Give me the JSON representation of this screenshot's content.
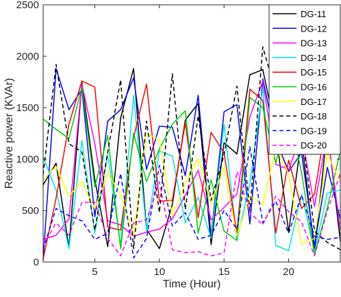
{
  "chart_data": {
    "type": "line",
    "title": "",
    "xlabel": "Time (Hour)",
    "ylabel": "Reactive power (KVAr)",
    "xlim": [
      1,
      24
    ],
    "ylim": [
      0,
      2500
    ],
    "xticks": [
      5,
      10,
      15,
      20
    ],
    "yticks": [
      0,
      500,
      1000,
      1500,
      2000,
      2500
    ],
    "grid": false,
    "legend_position": "top-right",
    "x": [
      1,
      2,
      3,
      4,
      5,
      6,
      7,
      8,
      9,
      10,
      11,
      12,
      13,
      14,
      15,
      16,
      17,
      18,
      19,
      20,
      21,
      22,
      23,
      24
    ],
    "series": [
      {
        "name": "DG-11",
        "color": "#000000",
        "dash": "solid",
        "values": [
          750,
          960,
          140,
          1750,
          800,
          150,
          1400,
          1880,
          320,
          130,
          560,
          1380,
          1540,
          170,
          1160,
          1050,
          1820,
          1870,
          1270,
          290,
          1200,
          100,
          1300,
          200
        ]
      },
      {
        "name": "DG-12",
        "color": "#0000ff",
        "dash": "solid",
        "values": [
          20,
          1880,
          1480,
          1680,
          440,
          1370,
          1480,
          1790,
          900,
          1320,
          1310,
          840,
          1620,
          250,
          1460,
          1530,
          370,
          1780,
          1190,
          880,
          1060,
          160,
          920,
          420
        ]
      },
      {
        "name": "DG-13",
        "color": "#ff00ff",
        "dash": "solid",
        "values": [
          220,
          260,
          420,
          1730,
          1150,
          400,
          360,
          250,
          290,
          320,
          420,
          650,
          890,
          410,
          530,
          660,
          1410,
          1760,
          950,
          900,
          1240,
          540,
          1260,
          310
        ]
      },
      {
        "name": "DG-14",
        "color": "#00e5e5",
        "dash": "solid",
        "values": [
          1020,
          700,
          130,
          1180,
          280,
          1050,
          160,
          1620,
          300,
          1080,
          1030,
          380,
          630,
          230,
          1340,
          210,
          760,
          1700,
          160,
          110,
          660,
          100,
          670,
          700
        ]
      },
      {
        "name": "DG-15",
        "color": "#ff0000",
        "dash": "solid",
        "values": [
          30,
          620,
          1340,
          1760,
          1700,
          340,
          310,
          1210,
          1730,
          590,
          600,
          1350,
          430,
          1260,
          1060,
          280,
          1680,
          1570,
          280,
          990,
          520,
          660,
          1440,
          1450
        ]
      },
      {
        "name": "DG-16",
        "color": "#00cc00",
        "dash": "solid",
        "values": [
          1390,
          1290,
          1200,
          1700,
          730,
          1230,
          130,
          1250,
          780,
          1100,
          1340,
          1470,
          280,
          800,
          300,
          210,
          1600,
          1500,
          960,
          1460,
          870,
          70,
          530,
          1080
        ]
      },
      {
        "name": "DG-17",
        "color": "#ffff00",
        "dash": "solid",
        "values": [
          800,
          930,
          640,
          780,
          520,
          860,
          660,
          260,
          1250,
          1190,
          450,
          760,
          1010,
          560,
          920,
          250,
          640,
          560,
          1110,
          860,
          170,
          230,
          1050,
          780
        ]
      },
      {
        "name": "DG-18",
        "color": "#000000",
        "dash": "dashed",
        "values": [
          850,
          1920,
          1150,
          1070,
          310,
          1070,
          1770,
          130,
          1370,
          480,
          1830,
          510,
          1420,
          600,
          1040,
          1710,
          500,
          2090,
          1650,
          1110,
          1290,
          300,
          190,
          120
        ]
      },
      {
        "name": "DG-19",
        "color": "#0000ff",
        "dash": "dashed",
        "values": [
          120,
          520,
          450,
          400,
          220,
          280,
          860,
          40,
          230,
          940,
          350,
          480,
          220,
          260,
          500,
          320,
          1120,
          380,
          590,
          280,
          650,
          250,
          220,
          240
        ]
      },
      {
        "name": "DG-20",
        "color": "#ff00ff",
        "dash": "dashed",
        "values": [
          160,
          380,
          260,
          580,
          580,
          230,
          60,
          380,
          410,
          780,
          120,
          90,
          100,
          60,
          90,
          880,
          480,
          360,
          640,
          490,
          390,
          60,
          500,
          860
        ]
      }
    ]
  }
}
